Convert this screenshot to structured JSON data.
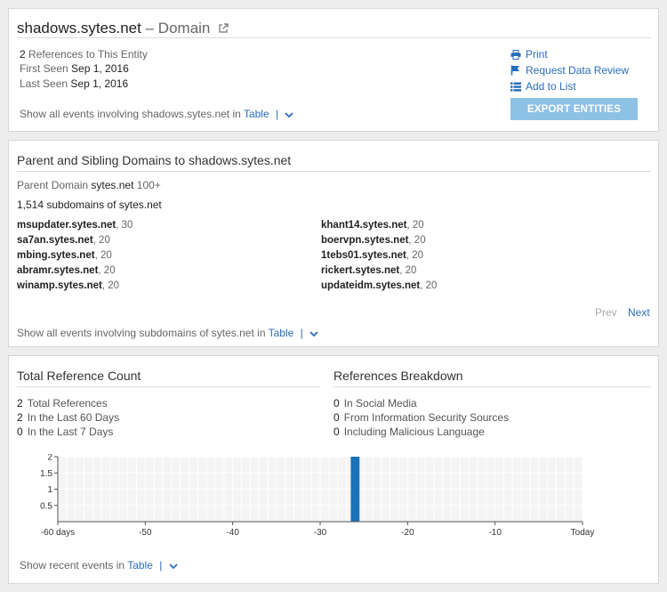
{
  "entity": {
    "name": "shadows.sytes.net",
    "separator": "–",
    "type": "Domain",
    "references_count": "2",
    "references_label": "References to This Entity",
    "first_seen_label": "First Seen",
    "first_seen": "Sep 1, 2016",
    "last_seen_label": "Last Seen",
    "last_seen": "Sep 1, 2016",
    "show_events_prefix": "Show all events involving shadows.sytes.net in",
    "show_events_link": "Table",
    "pipe": "|"
  },
  "actions": {
    "print": "Print",
    "request_review": "Request Data Review",
    "add_to_list": "Add to List",
    "export": "EXPORT ENTITIES"
  },
  "domains": {
    "title": "Parent and Sibling Domains to shadows.sytes.net",
    "parent_label": "Parent Domain",
    "parent_name": "sytes.net",
    "parent_count": "100+",
    "subdomain_count_text": "1,514 subdomains of sytes.net",
    "subdomains_left": [
      {
        "name": "msupdater.sytes.net",
        "count": ", 30"
      },
      {
        "name": "sa7an.sytes.net",
        "count": ", 20"
      },
      {
        "name": "mbing.sytes.net",
        "count": ", 20"
      },
      {
        "name": "abramr.sytes.net",
        "count": ", 20"
      },
      {
        "name": "winamp.sytes.net",
        "count": ", 20"
      }
    ],
    "subdomains_right": [
      {
        "name": "khant14.sytes.net",
        "count": ", 20"
      },
      {
        "name": "boervpn.sytes.net",
        "count": ", 20"
      },
      {
        "name": "1tebs01.sytes.net",
        "count": ", 20"
      },
      {
        "name": "rickert.sytes.net",
        "count": ", 20"
      },
      {
        "name": "updateidm.sytes.net",
        "count": ", 20"
      }
    ],
    "prev": "Prev",
    "next": "Next",
    "show_events_prefix": "Show all events involving subdomains of sytes.net in",
    "show_events_link": "Table",
    "pipe": "|"
  },
  "references": {
    "total_title": "Total Reference Count",
    "breakdown_title": "References Breakdown",
    "total": {
      "num": "2",
      "label": "Total References"
    },
    "last60": {
      "num": "2",
      "label": "In the Last 60 Days"
    },
    "last7": {
      "num": "0",
      "label": "In the Last 7 Days"
    },
    "social": {
      "num": "0",
      "label": "In Social Media"
    },
    "infosec": {
      "num": "0",
      "label": "From Information Security Sources"
    },
    "malicious": {
      "num": "0",
      "label": "Including Malicious Language"
    },
    "show_recent_prefix": "Show recent events in",
    "show_recent_link": "Table",
    "pipe": "|"
  },
  "chart_data": {
    "type": "bar",
    "x_ticks": [
      {
        "x": -60,
        "label": "-60 days"
      },
      {
        "x": -50,
        "label": "-50"
      },
      {
        "x": -40,
        "label": "-40"
      },
      {
        "x": -30,
        "label": "-30"
      },
      {
        "x": -20,
        "label": "-20"
      },
      {
        "x": -10,
        "label": "-10"
      },
      {
        "x": 0,
        "label": "Today"
      }
    ],
    "y_ticks": [
      {
        "y": 0.5,
        "label": "0.5"
      },
      {
        "y": 1,
        "label": "1"
      },
      {
        "y": 1.5,
        "label": "1.5"
      },
      {
        "y": 2,
        "label": "2"
      }
    ],
    "xlim": [
      -60,
      0
    ],
    "ylim": [
      0,
      2
    ],
    "bars": [
      {
        "x": -26,
        "value": 2
      }
    ],
    "bar_color": "#1a73b8",
    "grid": true
  },
  "colors": {
    "link": "#2a6ebb",
    "export_button": "#8ec1e6",
    "bar": "#1a73b8"
  }
}
